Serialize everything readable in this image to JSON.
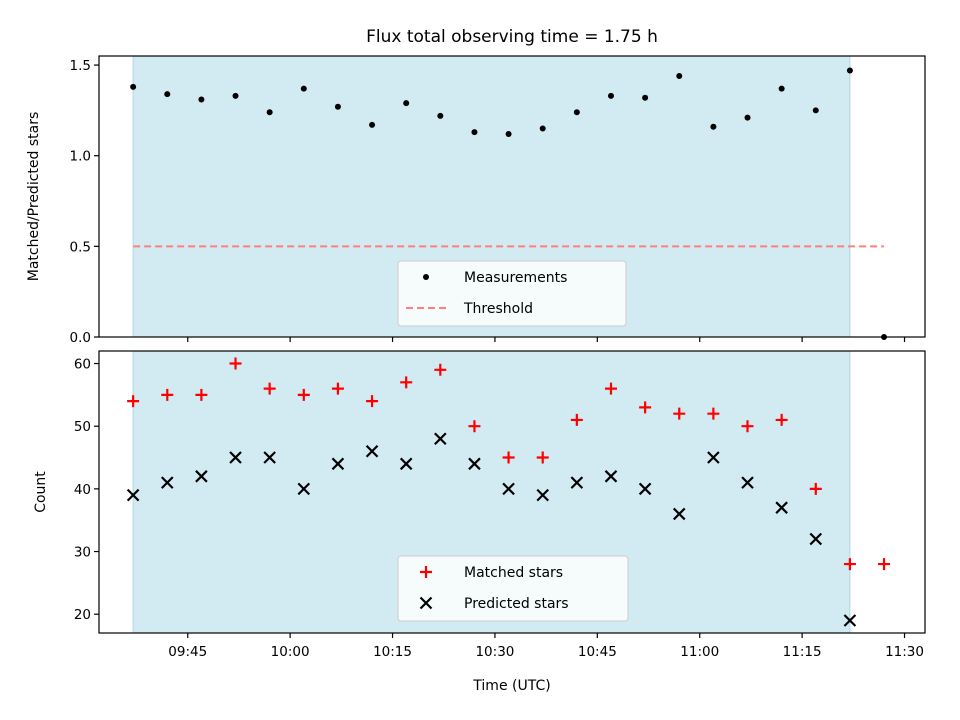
{
  "figure": {
    "title": "Flux total observing time = 1.75 h"
  },
  "chart_data": [
    {
      "type": "scatter",
      "ylabel": "Matched/Predicted stars",
      "xlim": [
        "09:32",
        "11:33"
      ],
      "ylim": [
        0,
        1.55
      ],
      "yticks": [
        "0.0",
        "0.5",
        "1.0",
        "1.5"
      ],
      "shaded_interval": {
        "start": "09:37",
        "end": "11:22",
        "color": "#add8e6"
      },
      "legend": {
        "position": "bottom-center",
        "entries": [
          "Measurements",
          "Threshold"
        ]
      },
      "series": [
        {
          "name": "Measurements",
          "color": "#000000",
          "marker": "dot",
          "x": [
            "09:37",
            "09:42",
            "09:47",
            "09:52",
            "09:57",
            "10:02",
            "10:07",
            "10:12",
            "10:17",
            "10:22",
            "10:27",
            "10:32",
            "10:37",
            "10:42",
            "10:47",
            "10:52",
            "10:57",
            "11:02",
            "11:07",
            "11:12",
            "11:17",
            "11:22",
            "11:27"
          ],
          "y": [
            1.38,
            1.34,
            1.31,
            1.33,
            1.24,
            1.37,
            1.27,
            1.17,
            1.29,
            1.22,
            1.13,
            1.12,
            1.15,
            1.24,
            1.33,
            1.32,
            1.44,
            1.16,
            1.21,
            1.37,
            1.25,
            1.47,
            0.0
          ]
        },
        {
          "name": "Threshold",
          "color": "#ff7f7f",
          "style": "dashed",
          "x": [
            "09:37",
            "11:27"
          ],
          "y": [
            0.5,
            0.5
          ]
        }
      ]
    },
    {
      "type": "scatter",
      "xlabel": "Time (UTC)",
      "ylabel": "Count",
      "xlim": [
        "09:32",
        "11:33"
      ],
      "ylim": [
        17,
        62
      ],
      "xticks": [
        "09:45",
        "10:00",
        "10:15",
        "10:30",
        "10:45",
        "11:00",
        "11:15",
        "11:30"
      ],
      "yticks": [
        "20",
        "30",
        "40",
        "50",
        "60"
      ],
      "shaded_interval": {
        "start": "09:37",
        "end": "11:22",
        "color": "#add8e6"
      },
      "legend": {
        "position": "bottom-center",
        "entries": [
          "Matched stars",
          "Predicted stars"
        ]
      },
      "series": [
        {
          "name": "Matched stars",
          "color": "#ff0000",
          "marker": "plus",
          "x": [
            "09:37",
            "09:42",
            "09:47",
            "09:52",
            "09:57",
            "10:02",
            "10:07",
            "10:12",
            "10:17",
            "10:22",
            "10:27",
            "10:32",
            "10:37",
            "10:42",
            "10:47",
            "10:52",
            "10:57",
            "11:02",
            "11:07",
            "11:12",
            "11:17",
            "11:22",
            "11:27"
          ],
          "y": [
            54,
            55,
            55,
            60,
            56,
            55,
            56,
            54,
            57,
            59,
            50,
            45,
            45,
            51,
            56,
            53,
            52,
            52,
            50,
            51,
            40,
            28,
            28
          ]
        },
        {
          "name": "Predicted stars",
          "color": "#000000",
          "marker": "x",
          "x": [
            "09:37",
            "09:42",
            "09:47",
            "09:52",
            "09:57",
            "10:02",
            "10:07",
            "10:12",
            "10:17",
            "10:22",
            "10:27",
            "10:32",
            "10:37",
            "10:42",
            "10:47",
            "10:52",
            "10:57",
            "11:02",
            "11:07",
            "11:12",
            "11:17",
            "11:22"
          ],
          "y": [
            39,
            41,
            42,
            45,
            45,
            40,
            44,
            46,
            44,
            48,
            44,
            40,
            39,
            41,
            42,
            40,
            36,
            45,
            41,
            37,
            32,
            19
          ]
        }
      ]
    }
  ]
}
